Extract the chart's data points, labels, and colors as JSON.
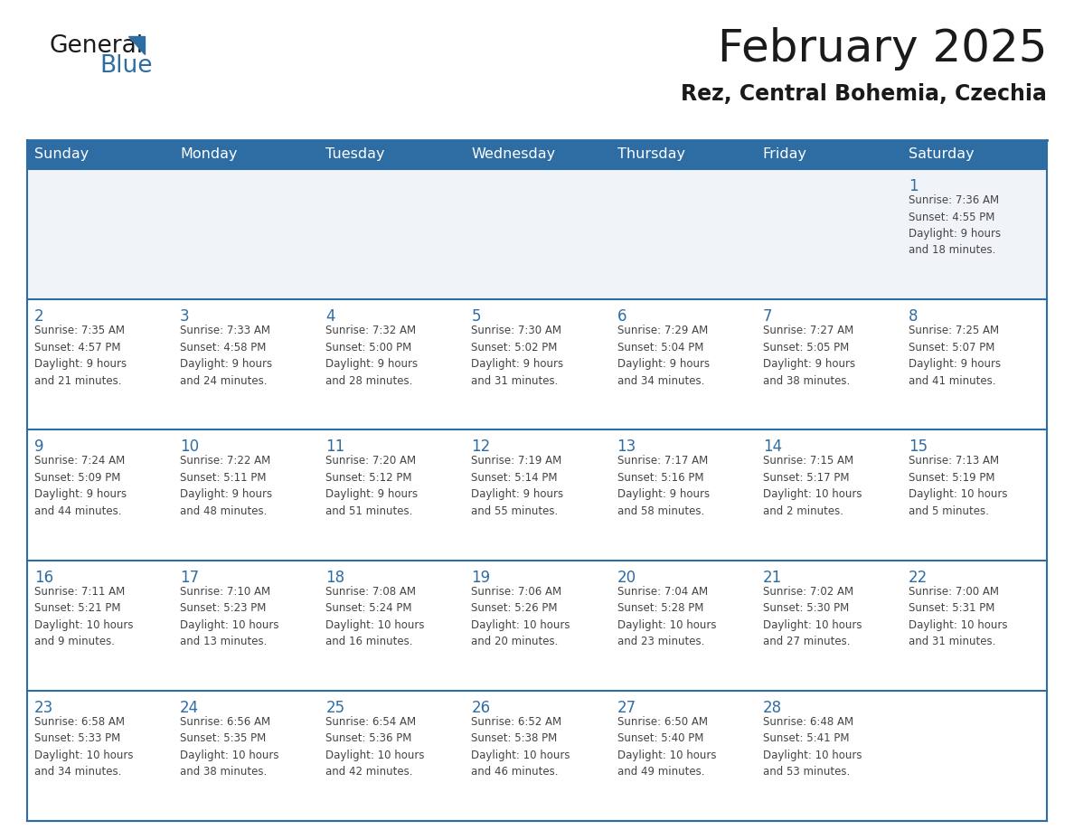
{
  "title": "February 2025",
  "subtitle": "Rez, Central Bohemia, Czechia",
  "header_bg": "#2e6da4",
  "header_text": "#ffffff",
  "cell_bg": "#ffffff",
  "first_row_bg": "#f0f4f8",
  "day_number_color": "#2e6da4",
  "info_text_color": "#555555",
  "border_color": "#2e6da4",
  "days_of_week": [
    "Sunday",
    "Monday",
    "Tuesday",
    "Wednesday",
    "Thursday",
    "Friday",
    "Saturday"
  ],
  "weeks": [
    [
      {
        "day": "",
        "info": ""
      },
      {
        "day": "",
        "info": ""
      },
      {
        "day": "",
        "info": ""
      },
      {
        "day": "",
        "info": ""
      },
      {
        "day": "",
        "info": ""
      },
      {
        "day": "",
        "info": ""
      },
      {
        "day": "1",
        "info": "Sunrise: 7:36 AM\nSunset: 4:55 PM\nDaylight: 9 hours\nand 18 minutes."
      }
    ],
    [
      {
        "day": "2",
        "info": "Sunrise: 7:35 AM\nSunset: 4:57 PM\nDaylight: 9 hours\nand 21 minutes."
      },
      {
        "day": "3",
        "info": "Sunrise: 7:33 AM\nSunset: 4:58 PM\nDaylight: 9 hours\nand 24 minutes."
      },
      {
        "day": "4",
        "info": "Sunrise: 7:32 AM\nSunset: 5:00 PM\nDaylight: 9 hours\nand 28 minutes."
      },
      {
        "day": "5",
        "info": "Sunrise: 7:30 AM\nSunset: 5:02 PM\nDaylight: 9 hours\nand 31 minutes."
      },
      {
        "day": "6",
        "info": "Sunrise: 7:29 AM\nSunset: 5:04 PM\nDaylight: 9 hours\nand 34 minutes."
      },
      {
        "day": "7",
        "info": "Sunrise: 7:27 AM\nSunset: 5:05 PM\nDaylight: 9 hours\nand 38 minutes."
      },
      {
        "day": "8",
        "info": "Sunrise: 7:25 AM\nSunset: 5:07 PM\nDaylight: 9 hours\nand 41 minutes."
      }
    ],
    [
      {
        "day": "9",
        "info": "Sunrise: 7:24 AM\nSunset: 5:09 PM\nDaylight: 9 hours\nand 44 minutes."
      },
      {
        "day": "10",
        "info": "Sunrise: 7:22 AM\nSunset: 5:11 PM\nDaylight: 9 hours\nand 48 minutes."
      },
      {
        "day": "11",
        "info": "Sunrise: 7:20 AM\nSunset: 5:12 PM\nDaylight: 9 hours\nand 51 minutes."
      },
      {
        "day": "12",
        "info": "Sunrise: 7:19 AM\nSunset: 5:14 PM\nDaylight: 9 hours\nand 55 minutes."
      },
      {
        "day": "13",
        "info": "Sunrise: 7:17 AM\nSunset: 5:16 PM\nDaylight: 9 hours\nand 58 minutes."
      },
      {
        "day": "14",
        "info": "Sunrise: 7:15 AM\nSunset: 5:17 PM\nDaylight: 10 hours\nand 2 minutes."
      },
      {
        "day": "15",
        "info": "Sunrise: 7:13 AM\nSunset: 5:19 PM\nDaylight: 10 hours\nand 5 minutes."
      }
    ],
    [
      {
        "day": "16",
        "info": "Sunrise: 7:11 AM\nSunset: 5:21 PM\nDaylight: 10 hours\nand 9 minutes."
      },
      {
        "day": "17",
        "info": "Sunrise: 7:10 AM\nSunset: 5:23 PM\nDaylight: 10 hours\nand 13 minutes."
      },
      {
        "day": "18",
        "info": "Sunrise: 7:08 AM\nSunset: 5:24 PM\nDaylight: 10 hours\nand 16 minutes."
      },
      {
        "day": "19",
        "info": "Sunrise: 7:06 AM\nSunset: 5:26 PM\nDaylight: 10 hours\nand 20 minutes."
      },
      {
        "day": "20",
        "info": "Sunrise: 7:04 AM\nSunset: 5:28 PM\nDaylight: 10 hours\nand 23 minutes."
      },
      {
        "day": "21",
        "info": "Sunrise: 7:02 AM\nSunset: 5:30 PM\nDaylight: 10 hours\nand 27 minutes."
      },
      {
        "day": "22",
        "info": "Sunrise: 7:00 AM\nSunset: 5:31 PM\nDaylight: 10 hours\nand 31 minutes."
      }
    ],
    [
      {
        "day": "23",
        "info": "Sunrise: 6:58 AM\nSunset: 5:33 PM\nDaylight: 10 hours\nand 34 minutes."
      },
      {
        "day": "24",
        "info": "Sunrise: 6:56 AM\nSunset: 5:35 PM\nDaylight: 10 hours\nand 38 minutes."
      },
      {
        "day": "25",
        "info": "Sunrise: 6:54 AM\nSunset: 5:36 PM\nDaylight: 10 hours\nand 42 minutes."
      },
      {
        "day": "26",
        "info": "Sunrise: 6:52 AM\nSunset: 5:38 PM\nDaylight: 10 hours\nand 46 minutes."
      },
      {
        "day": "27",
        "info": "Sunrise: 6:50 AM\nSunset: 5:40 PM\nDaylight: 10 hours\nand 49 minutes."
      },
      {
        "day": "28",
        "info": "Sunrise: 6:48 AM\nSunset: 5:41 PM\nDaylight: 10 hours\nand 53 minutes."
      },
      {
        "day": "",
        "info": ""
      }
    ]
  ]
}
